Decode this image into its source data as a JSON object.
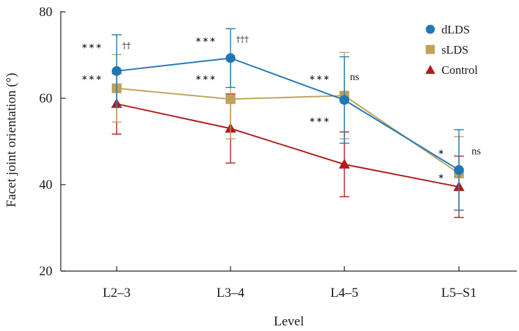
{
  "chart_data": {
    "type": "line",
    "title": "",
    "xlabel": "Level",
    "ylabel": "Facet joint orientation (°)",
    "categories": [
      "L2–3",
      "L3–4",
      "L4–5",
      "L5–S1"
    ],
    "ylim": [
      20,
      80
    ],
    "yticks": [
      "20",
      "40",
      "60",
      "80"
    ],
    "grid": false,
    "legend_position": "top-right",
    "series": [
      {
        "name": "dLDS",
        "marker": "circle",
        "color": "#1f77b4",
        "values": [
          66.3,
          69.3,
          59.6,
          43.4
        ],
        "error": [
          8.4,
          6.8,
          10.0,
          9.3
        ]
      },
      {
        "name": "sLDS",
        "marker": "square",
        "color": "#c0a15a",
        "values": [
          62.3,
          59.8,
          60.6,
          42.6
        ],
        "error": [
          7.8,
          9.2,
          10.0,
          8.5
        ]
      },
      {
        "name": "Control",
        "marker": "triangle",
        "color": "#b01c1c",
        "values": [
          58.7,
          53.0,
          44.7,
          39.5
        ],
        "error": [
          7.0,
          8.0,
          7.5,
          7.1
        ]
      }
    ],
    "annotations": [
      {
        "text": "∗∗∗",
        "category": "L2–3",
        "y": 71.5,
        "side": "left",
        "style": "stars"
      },
      {
        "text": "††",
        "category": "L2–3",
        "y": 71.5,
        "side": "right",
        "style": "dagger"
      },
      {
        "text": "∗∗∗",
        "category": "L2–3",
        "y": 64.2,
        "side": "left",
        "style": "stars"
      },
      {
        "text": "∗∗∗",
        "category": "L3–4",
        "y": 73.0,
        "side": "left",
        "style": "stars"
      },
      {
        "text": "†††",
        "category": "L3–4",
        "y": 73.0,
        "side": "right",
        "style": "dagger"
      },
      {
        "text": "∗∗∗",
        "category": "L3–4",
        "y": 64.2,
        "side": "left",
        "style": "stars"
      },
      {
        "text": "∗∗∗",
        "category": "L4–5",
        "y": 64.2,
        "side": "left",
        "style": "stars"
      },
      {
        "text": "ns",
        "category": "L4–5",
        "y": 64.2,
        "side": "right",
        "style": "text"
      },
      {
        "text": "∗∗∗",
        "category": "L4–5",
        "y": 54.4,
        "side": "left",
        "style": "stars"
      },
      {
        "text": "∗",
        "category": "L5–S1",
        "y": 47.0,
        "side": "left",
        "style": "stars"
      },
      {
        "text": "ns",
        "category": "L5–S1",
        "y": 47.0,
        "side": "right",
        "style": "text"
      },
      {
        "text": "∗",
        "category": "L5–S1",
        "y": 41.4,
        "side": "left",
        "style": "stars"
      }
    ]
  }
}
